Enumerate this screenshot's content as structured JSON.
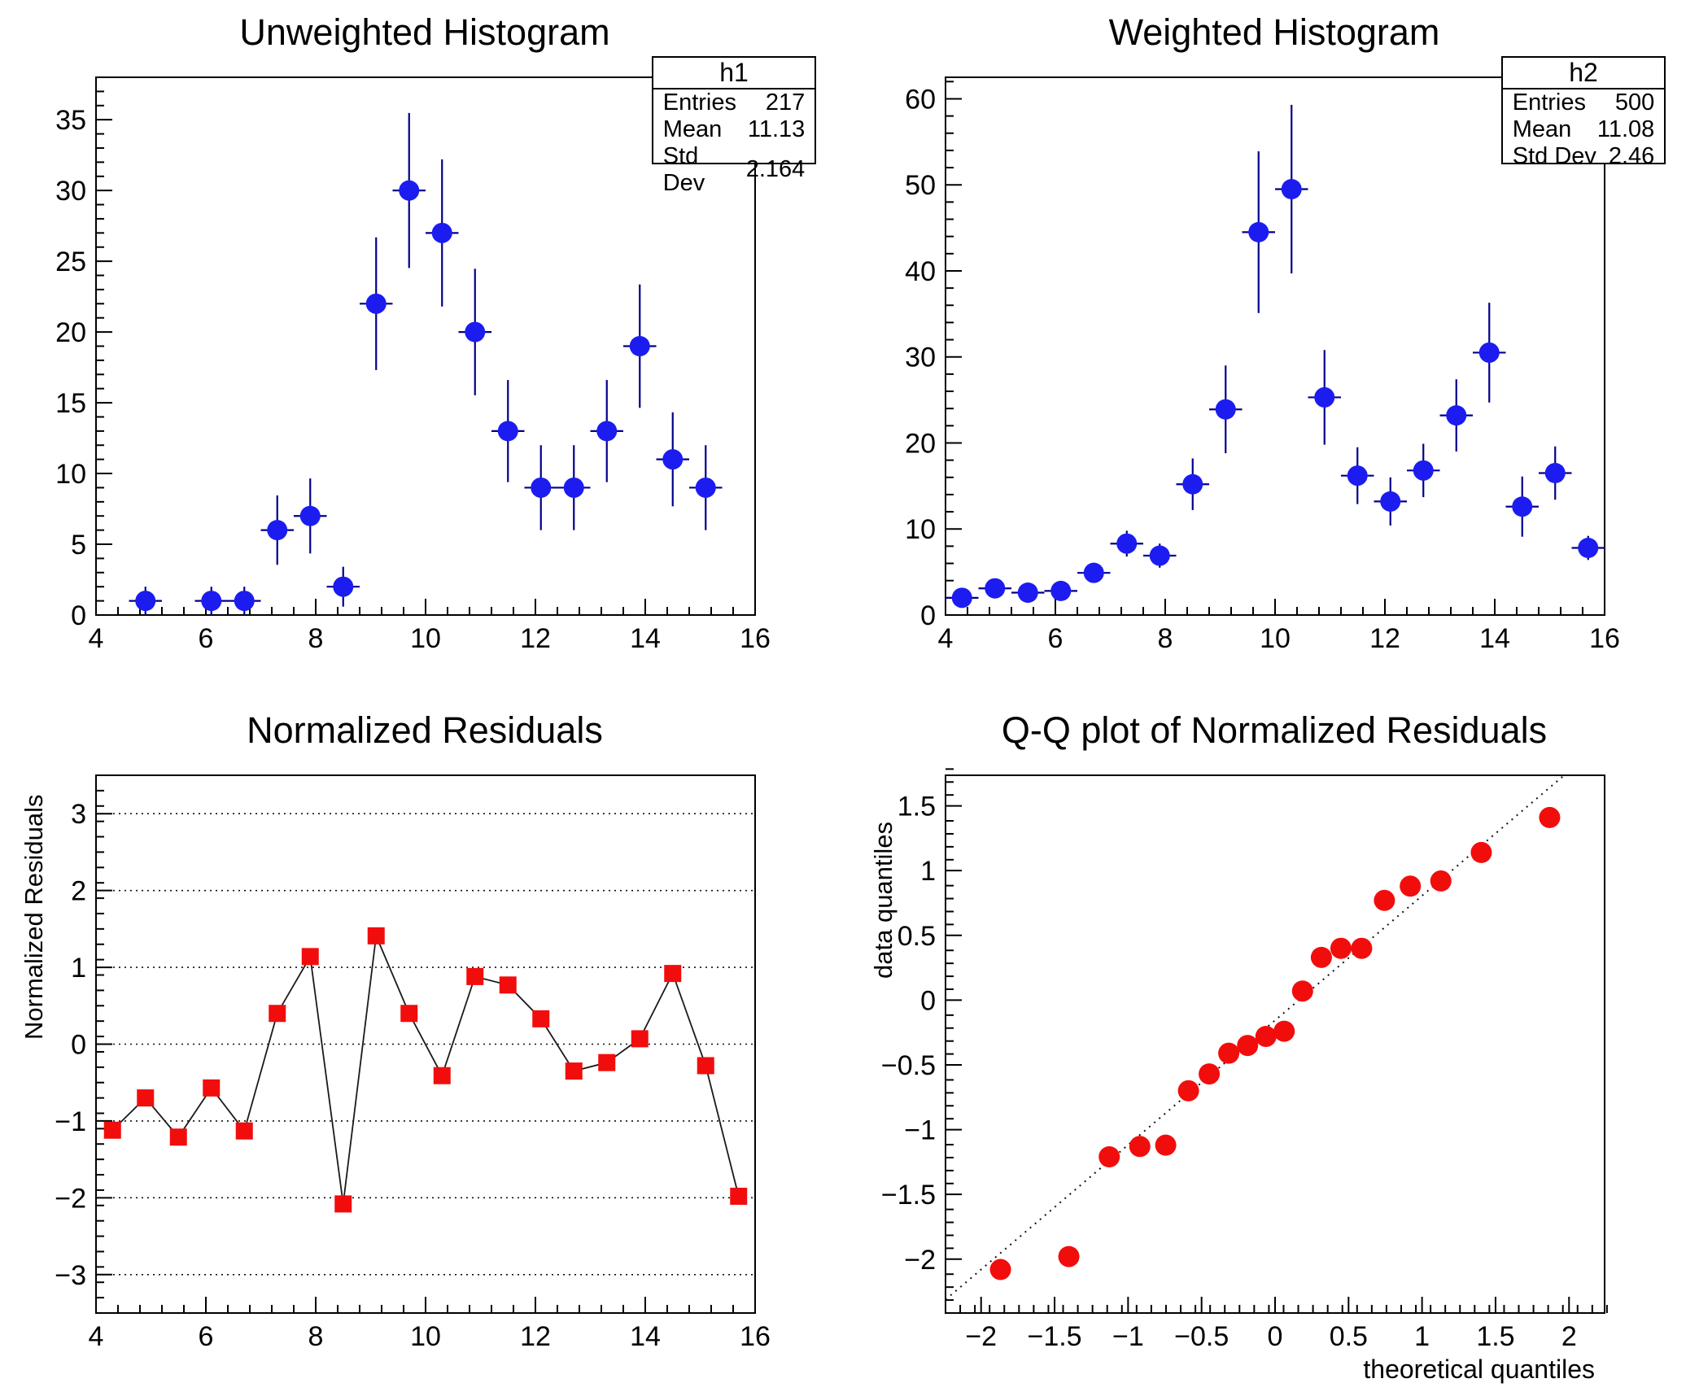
{
  "colors": {
    "background": "#ffffff",
    "frame": "#000000",
    "blue_marker": "#1c1cf0",
    "blue_error_line": "#00008b",
    "red_marker": "#f20d0d",
    "residual_line": "#1a1a1a",
    "grid_dotted": "#111111"
  },
  "chart_data": [
    {
      "id": "unweighted-histogram",
      "type": "scatter",
      "title": "Unweighted Histogram",
      "stats": {
        "name": "h1",
        "rows": [
          {
            "label": "Entries",
            "value": "217"
          },
          {
            "label": "Mean",
            "value": "11.13"
          },
          {
            "label": "Std Dev",
            "value": "2.164"
          }
        ]
      },
      "xlabel": "",
      "ylabel": "",
      "xlim": [
        4,
        16
      ],
      "ylim": [
        0,
        38
      ],
      "xticks": {
        "values": [
          4,
          6,
          8,
          10,
          12,
          14,
          16
        ],
        "labels": [
          "4",
          "6",
          "8",
          "10",
          "12",
          "14",
          "16"
        ],
        "minor": 0.4
      },
      "yticks": {
        "values": [
          0,
          5,
          10,
          15,
          20,
          25,
          30,
          35
        ],
        "labels": [
          "0",
          "5",
          "10",
          "15",
          "20",
          "25",
          "30",
          "35"
        ],
        "minor": 1
      },
      "marker": {
        "shape": "circle",
        "radius": 12.5,
        "color": "#1c1cf0"
      },
      "error_color": "#00008b",
      "xerr": 0.3,
      "points": [
        [
          4.9,
          1,
          1
        ],
        [
          6.1,
          1,
          1
        ],
        [
          6.7,
          1,
          1
        ],
        [
          7.3,
          6,
          2.45
        ],
        [
          7.9,
          7,
          2.65
        ],
        [
          8.5,
          2,
          1.41
        ],
        [
          9.1,
          22,
          4.69
        ],
        [
          9.7,
          30,
          5.48
        ],
        [
          10.3,
          27,
          5.2
        ],
        [
          10.9,
          20,
          4.47
        ],
        [
          11.5,
          13,
          3.61
        ],
        [
          12.1,
          9,
          3
        ],
        [
          12.7,
          9,
          3
        ],
        [
          13.3,
          13,
          3.61
        ],
        [
          13.9,
          19,
          4.36
        ],
        [
          14.5,
          11,
          3.32
        ],
        [
          15.1,
          9,
          3
        ]
      ]
    },
    {
      "id": "weighted-histogram",
      "type": "scatter",
      "title": "Weighted Histogram",
      "stats": {
        "name": "h2",
        "rows": [
          {
            "label": "Entries",
            "value": "500"
          },
          {
            "label": "Mean",
            "value": "11.08"
          },
          {
            "label": "Std Dev",
            "value": "2.46"
          }
        ]
      },
      "xlabel": "",
      "ylabel": "",
      "xlim": [
        4,
        16
      ],
      "ylim": [
        0,
        62.5
      ],
      "xticks": {
        "values": [
          4,
          6,
          8,
          10,
          12,
          14,
          16
        ],
        "labels": [
          "4",
          "6",
          "8",
          "10",
          "12",
          "14",
          "16"
        ],
        "minor": 0.4
      },
      "yticks": {
        "values": [
          0,
          10,
          20,
          30,
          40,
          50,
          60
        ],
        "labels": [
          "0",
          "10",
          "20",
          "30",
          "40",
          "50",
          "60"
        ],
        "minor": 2
      },
      "marker": {
        "shape": "circle",
        "radius": 12.5,
        "color": "#1c1cf0"
      },
      "error_color": "#00008b",
      "xerr": 0.3,
      "points": [
        [
          4.3,
          2.0,
          0.8
        ],
        [
          4.9,
          3.1,
          0.9
        ],
        [
          5.5,
          2.6,
          0.8
        ],
        [
          6.1,
          2.8,
          0.9
        ],
        [
          6.7,
          4.9,
          1.1
        ],
        [
          7.3,
          8.3,
          1.5
        ],
        [
          7.9,
          6.9,
          1.4
        ],
        [
          8.5,
          15.2,
          3.0
        ],
        [
          9.1,
          23.9,
          5.1
        ],
        [
          9.7,
          44.5,
          9.4
        ],
        [
          10.3,
          49.5,
          9.8
        ],
        [
          10.9,
          25.3,
          5.5
        ],
        [
          11.5,
          16.2,
          3.3
        ],
        [
          12.1,
          13.2,
          2.8
        ],
        [
          12.7,
          16.8,
          3.1
        ],
        [
          13.3,
          23.2,
          4.2
        ],
        [
          13.9,
          30.5,
          5.8
        ],
        [
          14.5,
          12.6,
          3.5
        ],
        [
          15.1,
          16.5,
          3.1
        ],
        [
          15.7,
          7.8,
          1.4
        ]
      ]
    },
    {
      "id": "normalized-residuals",
      "type": "line",
      "title": "Normalized Residuals",
      "xlabel": "",
      "ylabel": "Normalized Residuals",
      "xlim": [
        4,
        16
      ],
      "ylim": [
        -3.5,
        3.5
      ],
      "xticks": {
        "values": [
          4,
          6,
          8,
          10,
          12,
          14,
          16
        ],
        "labels": [
          "4",
          "6",
          "8",
          "10",
          "12",
          "14",
          "16"
        ],
        "minor": 0.4
      },
      "yticks": {
        "values": [
          -3,
          -2,
          -1,
          0,
          1,
          2,
          3
        ],
        "labels": [
          "−3",
          "−2",
          "−1",
          "0",
          "1",
          "2",
          "3"
        ],
        "minor": 0.2
      },
      "grid_y": [
        -3,
        -2,
        -1,
        0,
        1,
        2,
        3
      ],
      "marker": {
        "shape": "square",
        "radius": 10.5,
        "color": "#f20d0d"
      },
      "connect": {
        "color": "#1a1a1a",
        "width": 1.8
      },
      "ylabel_start": 420,
      "points": [
        [
          4.3,
          -1.12
        ],
        [
          4.9,
          -0.7
        ],
        [
          5.5,
          -1.21
        ],
        [
          6.1,
          -0.57
        ],
        [
          6.7,
          -1.13
        ],
        [
          7.3,
          0.4
        ],
        [
          7.9,
          1.14
        ],
        [
          8.5,
          -2.08
        ],
        [
          9.1,
          1.41
        ],
        [
          9.7,
          0.4
        ],
        [
          10.3,
          -0.41
        ],
        [
          10.9,
          0.88
        ],
        [
          11.5,
          0.77
        ],
        [
          12.1,
          0.33
        ],
        [
          12.7,
          -0.35
        ],
        [
          13.3,
          -0.24
        ],
        [
          13.9,
          0.07
        ],
        [
          14.5,
          0.92
        ],
        [
          15.1,
          -0.28
        ],
        [
          15.7,
          -1.98
        ]
      ]
    },
    {
      "id": "qq-plot",
      "type": "scatter",
      "title": "Q-Q plot of Normalized Residuals",
      "xlabel": "theoretical quantiles",
      "ylabel": "data quantiles",
      "xlim": [
        -2.242,
        2.242
      ],
      "ylim": [
        -2.416,
        1.736
      ],
      "xticks": {
        "values": [
          -2,
          -1.5,
          -1,
          -0.5,
          0,
          0.5,
          1,
          1.5,
          2
        ],
        "labels": [
          "−2",
          "−1.5",
          "−1",
          "−0.5",
          "0",
          "0.5",
          "1",
          "1.5",
          "2"
        ],
        "minor": 0.1
      },
      "yticks": {
        "values": [
          -2,
          -1.5,
          -1,
          -0.5,
          0,
          0.5,
          1,
          1.5
        ],
        "labels": [
          "−2",
          "−1.5",
          "−1",
          "−0.5",
          "0",
          "0.5",
          "1",
          "1.5"
        ],
        "minor": 0.1
      },
      "marker": {
        "shape": "circle",
        "radius": 13,
        "color": "#f20d0d"
      },
      "ref_line": {
        "slope": 0.962,
        "intercept": -0.156,
        "color": "#111111",
        "dash": "2 6"
      },
      "ylabel_start": 345,
      "points": [
        [
          -1.868,
          -2.08
        ],
        [
          -1.403,
          -1.98
        ],
        [
          -1.128,
          -1.21
        ],
        [
          -0.92,
          -1.13
        ],
        [
          -0.744,
          -1.12
        ],
        [
          -0.589,
          -0.7
        ],
        [
          -0.448,
          -0.57
        ],
        [
          -0.315,
          -0.41
        ],
        [
          -0.187,
          -0.35
        ],
        [
          -0.062,
          -0.28
        ],
        [
          0.062,
          -0.24
        ],
        [
          0.187,
          0.07
        ],
        [
          0.315,
          0.33
        ],
        [
          0.448,
          0.4
        ],
        [
          0.589,
          0.4
        ],
        [
          0.744,
          0.77
        ],
        [
          0.92,
          0.88
        ],
        [
          1.128,
          0.92
        ],
        [
          1.403,
          1.14
        ],
        [
          1.868,
          1.41
        ]
      ]
    }
  ]
}
